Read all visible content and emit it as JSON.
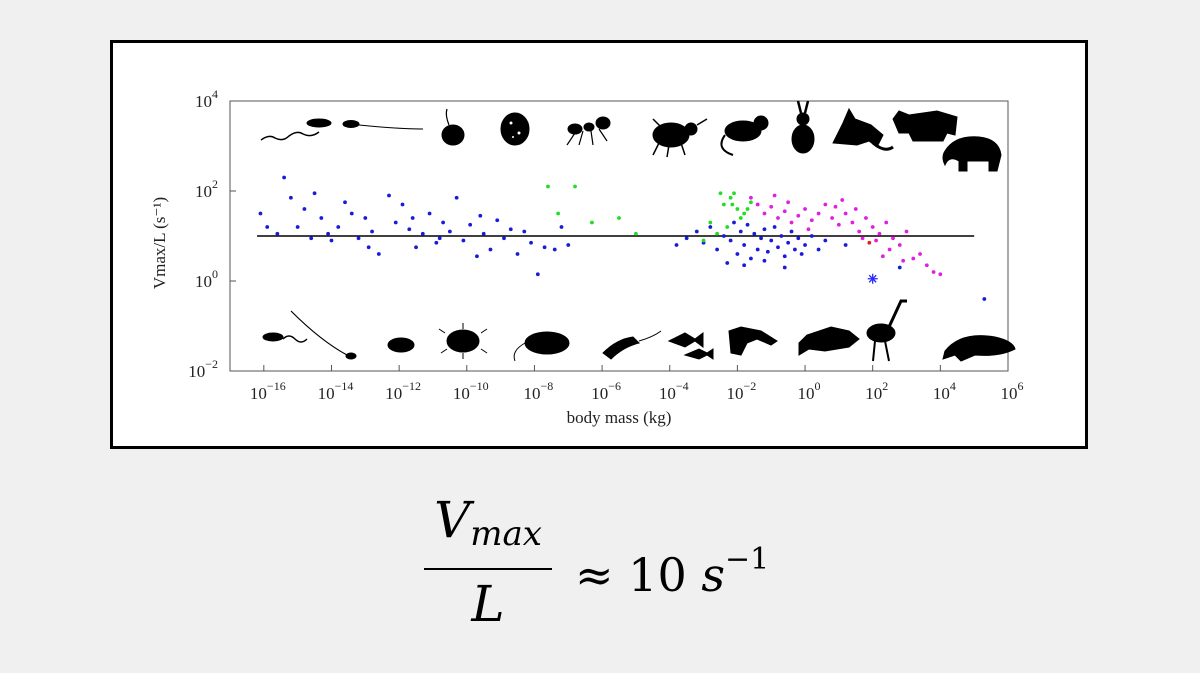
{
  "chart_data": {
    "type": "scatter",
    "xlabel": "body mass (kg)",
    "ylabel": "Vmax/L (s⁻¹)",
    "x_scale": "log",
    "y_scale": "log",
    "xlim_log10": [
      -17,
      6
    ],
    "ylim_log10": [
      -2,
      4
    ],
    "x_tick_exponents": [
      "−16",
      "−14",
      "−12",
      "−10",
      "−8",
      "−6",
      "−4",
      "−2",
      "0",
      "2",
      "4",
      "6"
    ],
    "x_tick_log10": [
      -16,
      -14,
      -12,
      -10,
      -8,
      -6,
      -4,
      -2,
      0,
      2,
      4,
      6
    ],
    "y_tick_exponents": [
      "−2",
      "0",
      "2",
      "4"
    ],
    "y_tick_log10": [
      -2,
      0,
      2,
      4
    ],
    "tick_base": "10",
    "reference_line": {
      "y_log10": 1,
      "x_from_log10": -16.2,
      "x_to_log10": 5
    },
    "series": [
      {
        "name": "blue",
        "color": "#1a1adb",
        "points_log10": [
          [
            -16.1,
            1.5
          ],
          [
            -15.9,
            1.2
          ],
          [
            -15.6,
            1.05
          ],
          [
            -15.4,
            2.3
          ],
          [
            -15.2,
            1.85
          ],
          [
            -15,
            1.2
          ],
          [
            -14.8,
            1.6
          ],
          [
            -14.5,
            1.95
          ],
          [
            -14.3,
            1.4
          ],
          [
            -14.1,
            1.05
          ],
          [
            -14,
            0.9
          ],
          [
            -13.8,
            1.2
          ],
          [
            -13.6,
            1.75
          ],
          [
            -13.4,
            1.5
          ],
          [
            -13.2,
            0.95
          ],
          [
            -13,
            1.4
          ],
          [
            -12.8,
            1.1
          ],
          [
            -12.6,
            0.6
          ],
          [
            -12.3,
            1.9
          ],
          [
            -12.1,
            1.3
          ],
          [
            -11.9,
            1.7
          ],
          [
            -11.7,
            1.15
          ],
          [
            -11.5,
            0.75
          ],
          [
            -11.3,
            1.05
          ],
          [
            -11.1,
            1.5
          ],
          [
            -10.9,
            0.85
          ],
          [
            -10.7,
            1.3
          ],
          [
            -10.5,
            1.1
          ],
          [
            -10.3,
            1.85
          ],
          [
            -10.1,
            0.9
          ],
          [
            -9.9,
            1.25
          ],
          [
            -9.7,
            0.55
          ],
          [
            -9.5,
            1.05
          ],
          [
            -9.3,
            0.7
          ],
          [
            -9.1,
            1.35
          ],
          [
            -8.9,
            0.95
          ],
          [
            -8.7,
            1.15
          ],
          [
            -8.5,
            0.6
          ],
          [
            -8.3,
            1.1
          ],
          [
            -8.1,
            0.85
          ],
          [
            -7.9,
            0.15
          ],
          [
            -7.7,
            0.75
          ],
          [
            -7.4,
            0.7
          ],
          [
            -7.2,
            1.2
          ],
          [
            -7,
            0.8
          ],
          [
            -14.6,
            0.95
          ],
          [
            -12.9,
            0.75
          ],
          [
            -11.6,
            1.4
          ],
          [
            -10.8,
            0.95
          ],
          [
            -9.6,
            1.45
          ],
          [
            -3.8,
            0.8
          ],
          [
            -3.5,
            0.95
          ],
          [
            -3.2,
            1.1
          ],
          [
            -3,
            0.85
          ],
          [
            -2.8,
            1.2
          ],
          [
            -2.6,
            0.7
          ],
          [
            -2.4,
            1
          ],
          [
            -2.2,
            0.9
          ],
          [
            -2.1,
            1.3
          ],
          [
            -2,
            0.6
          ],
          [
            -1.9,
            1.1
          ],
          [
            -1.8,
            0.8
          ],
          [
            -1.7,
            1.25
          ],
          [
            -1.6,
            0.5
          ],
          [
            -1.5,
            1.05
          ],
          [
            -1.4,
            0.7
          ],
          [
            -1.3,
            0.95
          ],
          [
            -1.2,
            1.15
          ],
          [
            -1.1,
            0.65
          ],
          [
            -1,
            0.9
          ],
          [
            -0.9,
            1.2
          ],
          [
            -0.8,
            0.75
          ],
          [
            -0.7,
            1
          ],
          [
            -0.6,
            0.55
          ],
          [
            -0.5,
            0.85
          ],
          [
            -0.4,
            1.1
          ],
          [
            -0.3,
            0.7
          ],
          [
            -0.2,
            0.95
          ],
          [
            -0.1,
            0.6
          ],
          [
            0,
            0.8
          ],
          [
            0.2,
            1
          ],
          [
            0.4,
            0.7
          ],
          [
            0.6,
            0.9
          ],
          [
            -2.3,
            0.4
          ],
          [
            -1.8,
            0.35
          ],
          [
            -1.2,
            0.45
          ],
          [
            -0.6,
            0.3
          ],
          [
            1.2,
            0.8
          ],
          [
            2.8,
            0.3
          ],
          [
            5.3,
            -0.4
          ]
        ]
      },
      {
        "name": "green",
        "color": "#22dd22",
        "points_log10": [
          [
            -7.6,
            2.1
          ],
          [
            -6.8,
            2.1
          ],
          [
            -6.3,
            1.3
          ],
          [
            -5.5,
            1.4
          ],
          [
            -5,
            1.05
          ],
          [
            -7.3,
            1.5
          ],
          [
            -2.8,
            1.3
          ],
          [
            -2.6,
            1.05
          ],
          [
            -2.4,
            1.7
          ],
          [
            -2.2,
            1.85
          ],
          [
            -2.1,
            1.95
          ],
          [
            -2,
            1.6
          ],
          [
            -1.9,
            1.4
          ],
          [
            -1.8,
            1.5
          ],
          [
            -2.5,
            1.95
          ],
          [
            -2.3,
            1.2
          ],
          [
            -1.7,
            1.6
          ],
          [
            -3,
            0.9
          ],
          [
            -1.6,
            1.75
          ],
          [
            -2.15,
            1.7
          ]
        ]
      },
      {
        "name": "magenta",
        "color": "#e020e0",
        "points_log10": [
          [
            -1.6,
            1.85
          ],
          [
            -1.4,
            1.7
          ],
          [
            -1.2,
            1.5
          ],
          [
            -1,
            1.65
          ],
          [
            -0.8,
            1.4
          ],
          [
            -0.6,
            1.55
          ],
          [
            -0.4,
            1.3
          ],
          [
            -0.2,
            1.45
          ],
          [
            0,
            1.6
          ],
          [
            0.2,
            1.35
          ],
          [
            0.4,
            1.5
          ],
          [
            0.6,
            1.7
          ],
          [
            0.8,
            1.4
          ],
          [
            1,
            1.25
          ],
          [
            1.2,
            1.5
          ],
          [
            1.4,
            1.3
          ],
          [
            1.6,
            1.1
          ],
          [
            1.8,
            1.4
          ],
          [
            2,
            1.2
          ],
          [
            2.1,
            0.9
          ],
          [
            2.2,
            1.05
          ],
          [
            2.4,
            1.3
          ],
          [
            2.5,
            0.7
          ],
          [
            2.6,
            0.95
          ],
          [
            2.8,
            0.8
          ],
          [
            3,
            1.1
          ],
          [
            3.2,
            0.5
          ],
          [
            3.4,
            0.6
          ],
          [
            3.6,
            0.35
          ],
          [
            3.8,
            0.2
          ],
          [
            4,
            0.15
          ],
          [
            -0.5,
            1.75
          ],
          [
            0.1,
            1.15
          ],
          [
            0.9,
            1.65
          ],
          [
            1.5,
            1.6
          ],
          [
            2.3,
            0.55
          ],
          [
            2.9,
            0.45
          ],
          [
            1.1,
            1.8
          ],
          [
            -0.9,
            1.9
          ],
          [
            1.7,
            0.95
          ]
        ]
      },
      {
        "name": "red",
        "color": "#e02020",
        "points_log10": [
          [
            1.9,
            0.85
          ]
        ]
      }
    ],
    "highlight_marker": {
      "shape": "asterisk",
      "color": "#2a2aff",
      "point_log10": [
        2,
        0.05
      ]
    },
    "top_silhouettes": [
      "flagellate",
      "sperm-cell",
      "paramecium",
      "ciliate",
      "ant",
      "beetle",
      "mouse",
      "rabbit",
      "fox",
      "rhino",
      "elephant"
    ],
    "bottom_silhouettes": [
      "bacterium",
      "spirochete",
      "euglena",
      "ciliate-hairy",
      "protozoan",
      "shrimp",
      "fish",
      "lizard",
      "bass-fish",
      "ostrich",
      "whale"
    ]
  },
  "formula": {
    "numerator": "V",
    "numerator_sub": "max",
    "denominator": "L",
    "relation": "≈",
    "value": "10",
    "unit": "s",
    "unit_exponent": "−1"
  }
}
